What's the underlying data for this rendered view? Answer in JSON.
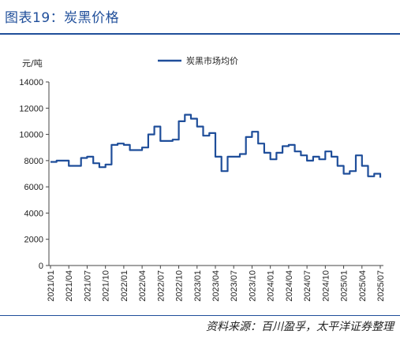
{
  "header": {
    "title": "图表19：炭黑价格"
  },
  "footer": {
    "source": "资料来源：百川盈孚，太平洋证券整理"
  },
  "colors": {
    "accent": "#1f4e9a",
    "series": "#1f4e9a"
  },
  "chart_data": {
    "type": "line",
    "title": "",
    "ylabel": "元/吨",
    "xlabel": "",
    "ylim": [
      0,
      14000
    ],
    "yticks": [
      0,
      2000,
      4000,
      6000,
      8000,
      10000,
      12000,
      14000
    ],
    "yticklabels": [
      "0",
      "2000",
      "4000",
      "6000",
      "8000",
      "10000",
      "12000",
      "14000"
    ],
    "xticklabels": [
      "2021/01",
      "2021/04",
      "2021/07",
      "2021/10",
      "2022/01",
      "2022/04",
      "2022/07",
      "2022/10",
      "2023/01",
      "2023/04",
      "2023/07",
      "2023/10",
      "2024/01",
      "2024/04",
      "2024/07",
      "2024/10",
      "2025/01",
      "2025/04",
      "2025/07"
    ],
    "legend": "top-center",
    "grid": false,
    "series": [
      {
        "name": "炭黑市场均价",
        "x": [
          "2021/01",
          "2021/02",
          "2021/03",
          "2021/04",
          "2021/05",
          "2021/06",
          "2021/07",
          "2021/08",
          "2021/09",
          "2021/10",
          "2021/11",
          "2021/12",
          "2022/01",
          "2022/02",
          "2022/03",
          "2022/04",
          "2022/05",
          "2022/06",
          "2022/07",
          "2022/08",
          "2022/09",
          "2022/10",
          "2022/11",
          "2022/12",
          "2023/01",
          "2023/02",
          "2023/03",
          "2023/04",
          "2023/05",
          "2023/06",
          "2023/07",
          "2023/08",
          "2023/09",
          "2023/10",
          "2023/11",
          "2023/12",
          "2024/01",
          "2024/02",
          "2024/03",
          "2024/04",
          "2024/05",
          "2024/06",
          "2024/07",
          "2024/08",
          "2024/09",
          "2024/10",
          "2024/11",
          "2024/12",
          "2025/01",
          "2025/02",
          "2025/03",
          "2025/04",
          "2025/05",
          "2025/06",
          "2025/07"
        ],
        "values": [
          7900,
          8000,
          8000,
          7600,
          7600,
          8200,
          8300,
          7800,
          7500,
          7700,
          9200,
          9300,
          9200,
          8800,
          8800,
          9000,
          10000,
          10600,
          9500,
          9500,
          9600,
          11000,
          11500,
          11200,
          10600,
          9900,
          10100,
          8300,
          7200,
          8300,
          8300,
          8500,
          9800,
          10200,
          9300,
          8600,
          8100,
          8600,
          9100,
          9200,
          8700,
          8400,
          8000,
          8300,
          8100,
          8700,
          8300,
          7600,
          7000,
          7200,
          8400,
          7600,
          6800,
          7000,
          6700
        ]
      }
    ]
  }
}
